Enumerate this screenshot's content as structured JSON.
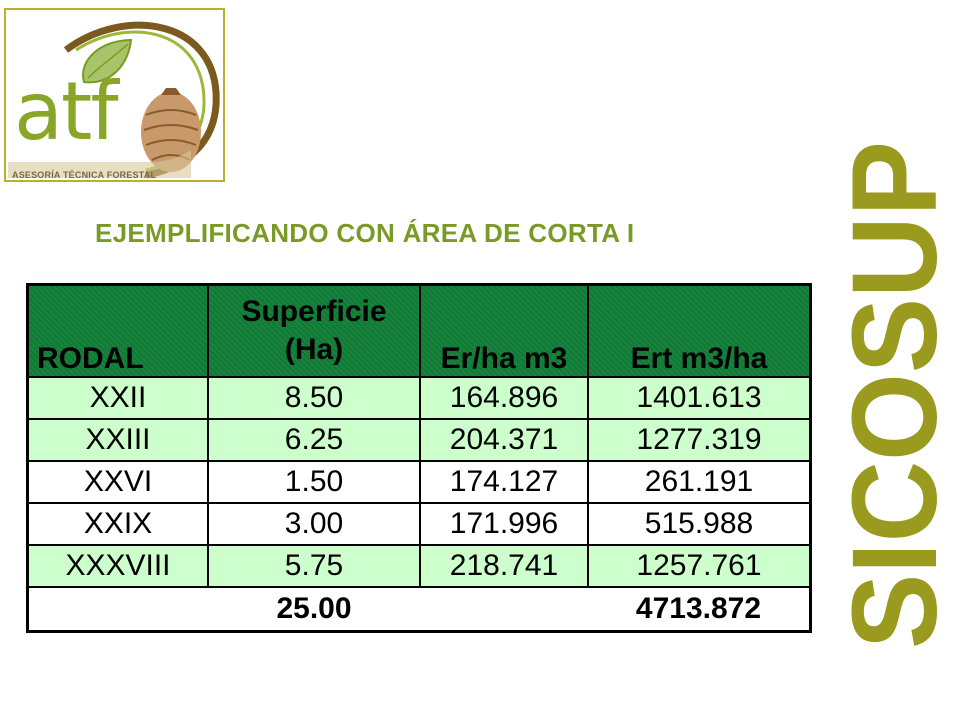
{
  "logo": {
    "text": "atf",
    "tagline": "ASESORÍA TÉCNICA FORESTAL"
  },
  "brand_vertical": "SICOSUP",
  "title": "EJEMPLIFICANDO CON ÁREA DE CORTA I",
  "colors": {
    "title": "#7a9a26",
    "header_bg": "#0e7b34",
    "row_green": "#ccffcc",
    "brand": "#9a9a1e"
  },
  "table": {
    "headers": {
      "rodal": "RODAL",
      "superficie_line1": "Superficie",
      "superficie_line2": "(Ha)",
      "er": "Er/ha m3",
      "ert": "Ert m3/ha"
    },
    "rows": [
      {
        "rodal": "XXII",
        "superficie": "8.50",
        "er": "164.896",
        "ert": "1401.613"
      },
      {
        "rodal": "XXIII",
        "superficie": "6.25",
        "er": "204.371",
        "ert": "1277.319"
      },
      {
        "rodal": "XXVI",
        "superficie": "1.50",
        "er": "174.127",
        "ert": "261.191"
      },
      {
        "rodal": "XXIX",
        "superficie": "3.00",
        "er": "171.996",
        "ert": "515.988"
      },
      {
        "rodal": "XXXVIII",
        "superficie": "5.75",
        "er": "218.741",
        "ert": "1257.761"
      }
    ],
    "total": {
      "superficie": "25.00",
      "ert": "4713.872"
    }
  }
}
